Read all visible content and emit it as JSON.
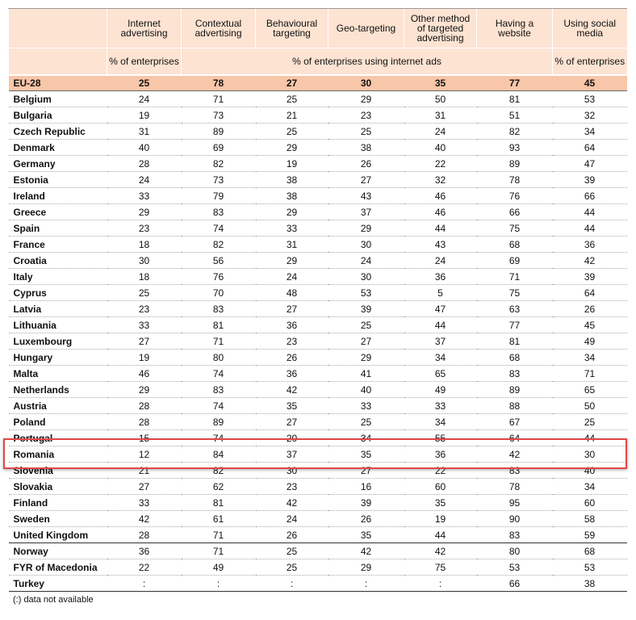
{
  "header": {
    "columns": [
      "Internet advertising",
      "Contextual advertising",
      "Behavioural targeting",
      "Geo-targeting",
      "Other method of targeted advertising",
      "Having a website",
      "Using social media"
    ],
    "units": [
      "% of enterprises",
      "% of enterprises using internet ads",
      "% of enterprises"
    ]
  },
  "table": {
    "eu": {
      "label": "EU-28",
      "values": [
        25,
        78,
        27,
        30,
        35,
        77,
        45
      ]
    },
    "members": [
      {
        "label": "Belgium",
        "values": [
          24,
          71,
          25,
          29,
          50,
          81,
          53
        ]
      },
      {
        "label": "Bulgaria",
        "values": [
          19,
          73,
          21,
          23,
          31,
          51,
          32
        ]
      },
      {
        "label": "Czech Republic",
        "values": [
          31,
          89,
          25,
          25,
          24,
          82,
          34
        ]
      },
      {
        "label": "Denmark",
        "values": [
          40,
          69,
          29,
          38,
          40,
          93,
          64
        ]
      },
      {
        "label": "Germany",
        "values": [
          28,
          82,
          19,
          26,
          22,
          89,
          47
        ]
      },
      {
        "label": "Estonia",
        "values": [
          24,
          73,
          38,
          27,
          32,
          78,
          39
        ]
      },
      {
        "label": "Ireland",
        "values": [
          33,
          79,
          38,
          43,
          46,
          76,
          66
        ]
      },
      {
        "label": "Greece",
        "values": [
          29,
          83,
          29,
          37,
          46,
          66,
          44
        ]
      },
      {
        "label": "Spain",
        "values": [
          23,
          74,
          33,
          29,
          44,
          75,
          44
        ]
      },
      {
        "label": "France",
        "values": [
          18,
          82,
          31,
          30,
          43,
          68,
          36
        ]
      },
      {
        "label": "Croatia",
        "values": [
          30,
          56,
          29,
          24,
          24,
          69,
          42
        ]
      },
      {
        "label": "Italy",
        "values": [
          18,
          76,
          24,
          30,
          36,
          71,
          39
        ]
      },
      {
        "label": "Cyprus",
        "values": [
          25,
          70,
          48,
          53,
          5,
          75,
          64
        ]
      },
      {
        "label": "Latvia",
        "values": [
          23,
          83,
          27,
          39,
          47,
          63,
          26
        ]
      },
      {
        "label": "Lithuania",
        "values": [
          33,
          81,
          36,
          25,
          44,
          77,
          45
        ]
      },
      {
        "label": "Luxembourg",
        "values": [
          27,
          71,
          23,
          27,
          37,
          81,
          49
        ]
      },
      {
        "label": "Hungary",
        "values": [
          19,
          80,
          26,
          29,
          34,
          68,
          34
        ]
      },
      {
        "label": "Malta",
        "values": [
          46,
          74,
          36,
          41,
          65,
          83,
          71
        ]
      },
      {
        "label": "Netherlands",
        "values": [
          29,
          83,
          42,
          40,
          49,
          89,
          65
        ]
      },
      {
        "label": "Austria",
        "values": [
          28,
          74,
          35,
          33,
          33,
          88,
          50
        ]
      },
      {
        "label": "Poland",
        "values": [
          28,
          89,
          27,
          25,
          34,
          67,
          25
        ]
      },
      {
        "label": "Portugal",
        "values": [
          15,
          74,
          20,
          34,
          55,
          64,
          44
        ]
      },
      {
        "label": "Romania",
        "values": [
          12,
          84,
          37,
          35,
          36,
          42,
          30
        ]
      },
      {
        "label": "Slovenia",
        "values": [
          21,
          82,
          30,
          27,
          22,
          83,
          40
        ]
      },
      {
        "label": "Slovakia",
        "values": [
          27,
          62,
          23,
          16,
          60,
          78,
          34
        ]
      },
      {
        "label": "Finland",
        "values": [
          33,
          81,
          42,
          39,
          35,
          95,
          60
        ]
      },
      {
        "label": "Sweden",
        "values": [
          42,
          61,
          24,
          26,
          19,
          90,
          58
        ]
      },
      {
        "label": "United Kingdom",
        "values": [
          28,
          71,
          26,
          35,
          44,
          83,
          59
        ]
      }
    ],
    "others": [
      {
        "label": "Norway",
        "values": [
          36,
          71,
          25,
          42,
          42,
          80,
          68
        ]
      },
      {
        "label": "FYR of Macedonia",
        "values": [
          22,
          49,
          25,
          29,
          75,
          53,
          53
        ]
      },
      {
        "label": "Turkey",
        "values": [
          ":",
          ":",
          ":",
          ":",
          ":",
          66,
          38
        ]
      }
    ]
  },
  "footnote": "(:) data not available"
}
